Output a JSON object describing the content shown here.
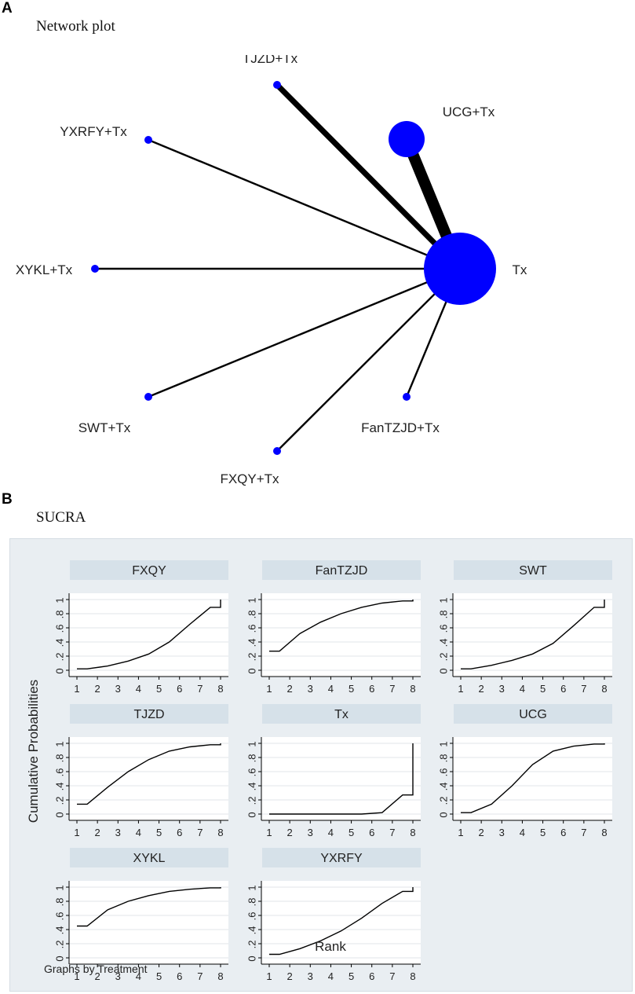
{
  "panel_a": {
    "letter": "A",
    "title": "Network plot"
  },
  "panel_b": {
    "letter": "B",
    "title": "SUCRA"
  },
  "chart_data": [
    {
      "type": "network",
      "nodes": [
        {
          "name": "TJZD+Tx",
          "size": "small"
        },
        {
          "name": "UCG+Tx",
          "size": "medium"
        },
        {
          "name": "YXRFY+Tx",
          "size": "small"
        },
        {
          "name": "XYKL+Tx",
          "size": "small"
        },
        {
          "name": "Tx",
          "size": "large"
        },
        {
          "name": "SWT+Tx",
          "size": "small"
        },
        {
          "name": "FanTZJD+Tx",
          "size": "small"
        },
        {
          "name": "FXQY+Tx",
          "size": "small"
        }
      ],
      "edges": [
        {
          "from": "TJZD+Tx",
          "to": "Tx",
          "weight": 3
        },
        {
          "from": "UCG+Tx",
          "to": "Tx",
          "weight": 6
        },
        {
          "from": "YXRFY+Tx",
          "to": "Tx",
          "weight": 1
        },
        {
          "from": "XYKL+Tx",
          "to": "Tx",
          "weight": 1
        },
        {
          "from": "SWT+Tx",
          "to": "Tx",
          "weight": 1
        },
        {
          "from": "FanTZJD+Tx",
          "to": "Tx",
          "weight": 1
        },
        {
          "from": "FXQY+Tx",
          "to": "Tx",
          "weight": 1
        }
      ]
    },
    {
      "type": "line",
      "ylabel": "Cumulative Probabilities",
      "xlabel": "Rank",
      "note": "Graphs by Treatment",
      "xticks": [
        "1",
        "2",
        "3",
        "4",
        "5",
        "6",
        "7",
        "8"
      ],
      "yticks": [
        "0",
        ".2",
        ".4",
        ".6",
        ".8",
        "1"
      ],
      "xlim": [
        1,
        8
      ],
      "ylim": [
        0,
        1
      ],
      "panels": [
        {
          "name": "FXQY",
          "values": [
            0.02,
            0.06,
            0.13,
            0.23,
            0.4,
            0.65,
            0.89,
            1.0
          ]
        },
        {
          "name": "FanTZJD",
          "values": [
            0.27,
            0.52,
            0.68,
            0.8,
            0.89,
            0.95,
            0.98,
            1.0
          ]
        },
        {
          "name": "SWT",
          "values": [
            0.02,
            0.07,
            0.14,
            0.23,
            0.38,
            0.63,
            0.89,
            1.0
          ]
        },
        {
          "name": "TJZD",
          "values": [
            0.14,
            0.38,
            0.6,
            0.77,
            0.89,
            0.95,
            0.98,
            1.0
          ]
        },
        {
          "name": "Tx",
          "values": [
            0.0,
            0.0,
            0.0,
            0.0,
            0.0,
            0.02,
            0.27,
            1.0
          ]
        },
        {
          "name": "UCG",
          "values": [
            0.02,
            0.14,
            0.4,
            0.7,
            0.89,
            0.96,
            0.99,
            1.0
          ]
        },
        {
          "name": "XYKL",
          "values": [
            0.45,
            0.68,
            0.8,
            0.88,
            0.94,
            0.97,
            0.99,
            1.0
          ]
        },
        {
          "name": "YXRFY",
          "values": [
            0.05,
            0.13,
            0.24,
            0.38,
            0.56,
            0.77,
            0.94,
            1.0
          ]
        }
      ]
    }
  ]
}
